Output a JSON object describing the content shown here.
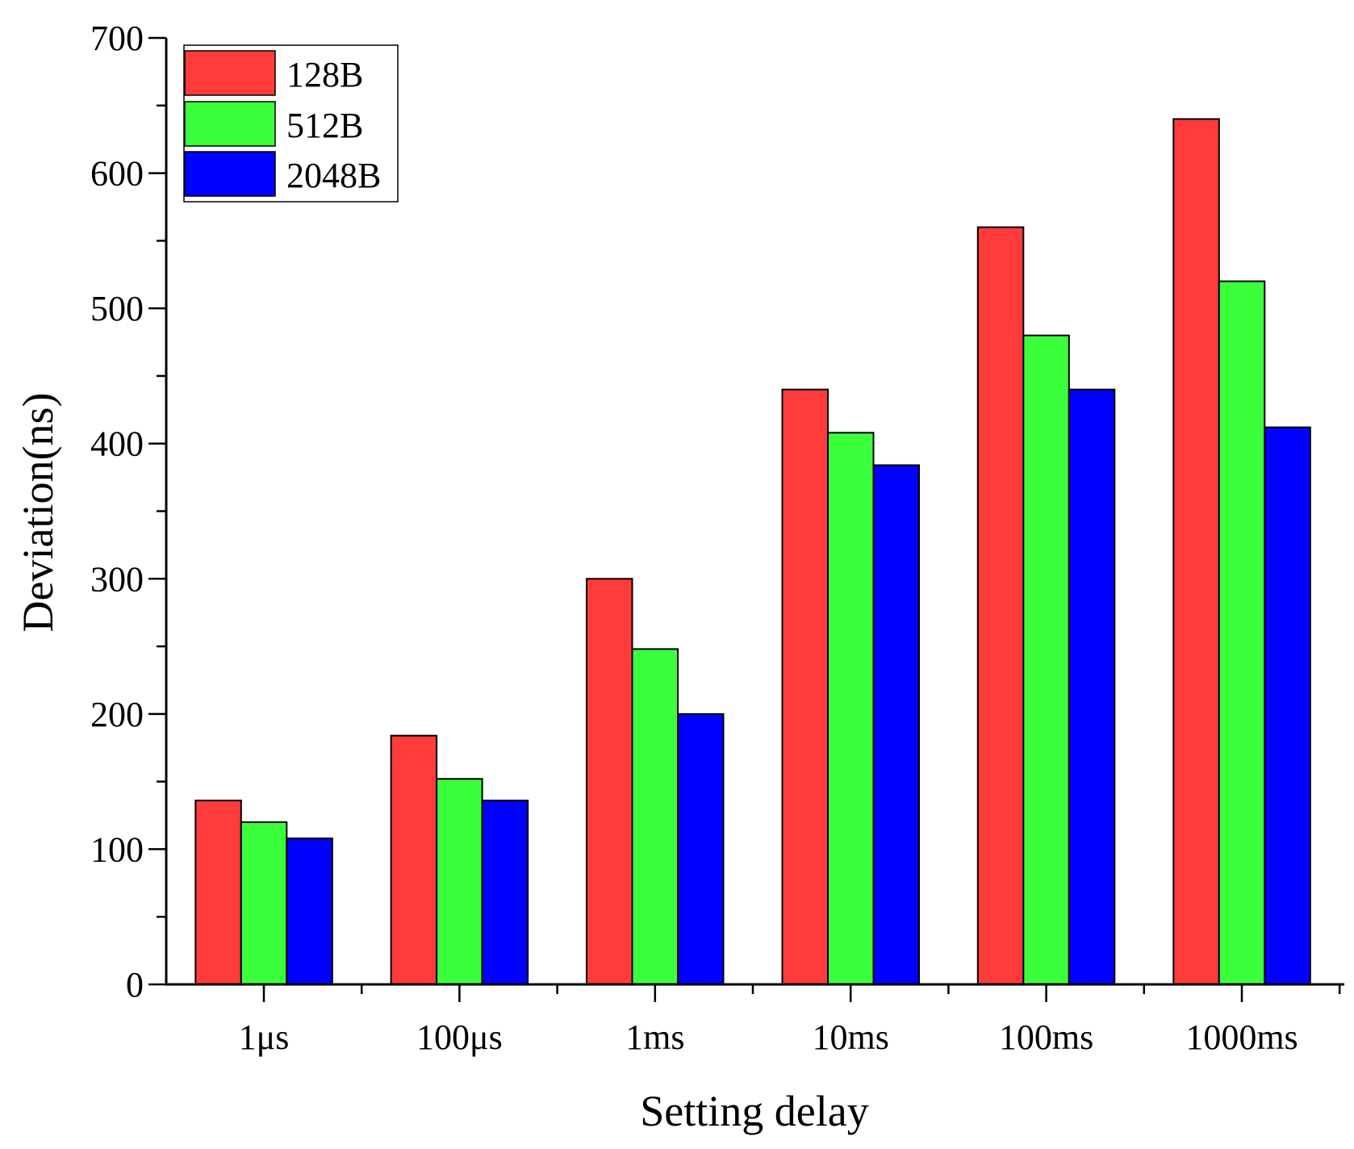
{
  "chart_data": {
    "type": "bar",
    "title": "",
    "xlabel": "Setting delay",
    "ylabel": "Deviation(ns)",
    "categories": [
      "1μs",
      "100μs",
      "1ms",
      "10ms",
      "100ms",
      "1000ms"
    ],
    "series": [
      {
        "name": "128B",
        "color": "#ff3b3b",
        "values": [
          136,
          184,
          300,
          440,
          560,
          640
        ]
      },
      {
        "name": "512B",
        "color": "#3cff3c",
        "values": [
          120,
          152,
          248,
          408,
          480,
          520
        ]
      },
      {
        "name": "2048B",
        "color": "#0000ff",
        "values": [
          108,
          136,
          200,
          384,
          440,
          412
        ]
      }
    ],
    "ylim": [
      0,
      700
    ],
    "yticks": [
      "0",
      "100",
      "200",
      "300",
      "400",
      "500",
      "600",
      "700"
    ],
    "grid": false,
    "legend_position": "top-left"
  }
}
